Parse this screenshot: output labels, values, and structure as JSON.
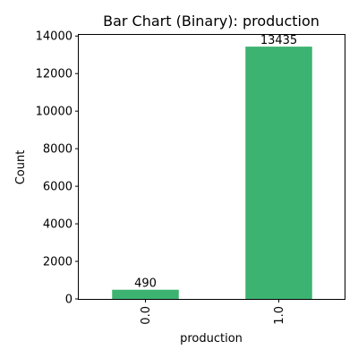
{
  "chart_data": {
    "type": "bar",
    "title": "Bar Chart (Binary): production",
    "xlabel": "production",
    "ylabel": "Count",
    "categories": [
      "0.0",
      "1.0"
    ],
    "values": [
      490,
      13435
    ],
    "data_labels": [
      "490",
      "13435"
    ],
    "yticks": [
      0,
      2000,
      4000,
      6000,
      8000,
      10000,
      12000,
      14000
    ],
    "ytick_labels": [
      "0",
      "2000",
      "4000",
      "6000",
      "8000",
      "10000",
      "12000",
      "14000"
    ],
    "ylim": [
      0,
      14107
    ],
    "grid": false,
    "bar_color": "#3cb371",
    "xtick_rotation": "vertical"
  }
}
